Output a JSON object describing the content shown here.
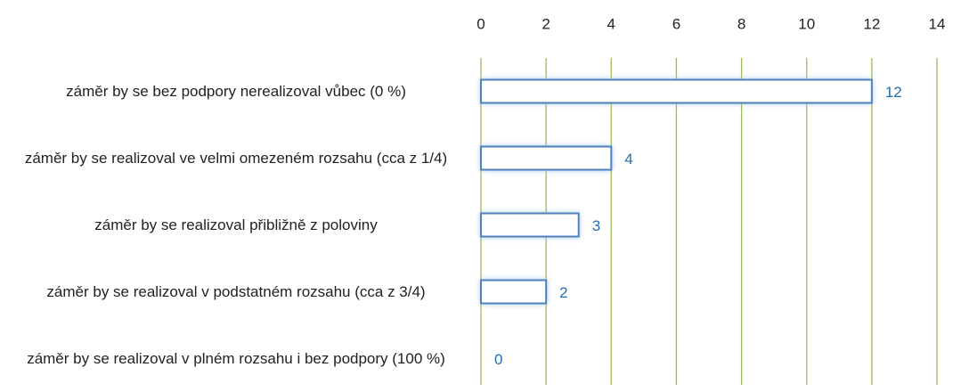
{
  "chart_data": {
    "type": "bar",
    "orientation": "horizontal",
    "categories": [
      "záměr by se bez podpory nerealizoval vůbec (0 %)",
      "záměr by se realizoval ve velmi omezeném rozsahu (cca z 1/4)",
      "záměr by se realizoval přibližně z poloviny",
      "záměr by se realizoval v podstatném rozsahu (cca z 3/4)",
      "záměr by se realizoval v plném rozsahu i bez podpory (100 %)"
    ],
    "values": [
      12,
      4,
      3,
      2,
      0
    ],
    "color": "#4f81bd",
    "label_color": "#1f6fb5",
    "grid_color": "#9bbb59",
    "xlim": [
      0,
      14
    ],
    "xticks": [
      0,
      2,
      4,
      6,
      8,
      10,
      12,
      14
    ],
    "grid": true
  }
}
